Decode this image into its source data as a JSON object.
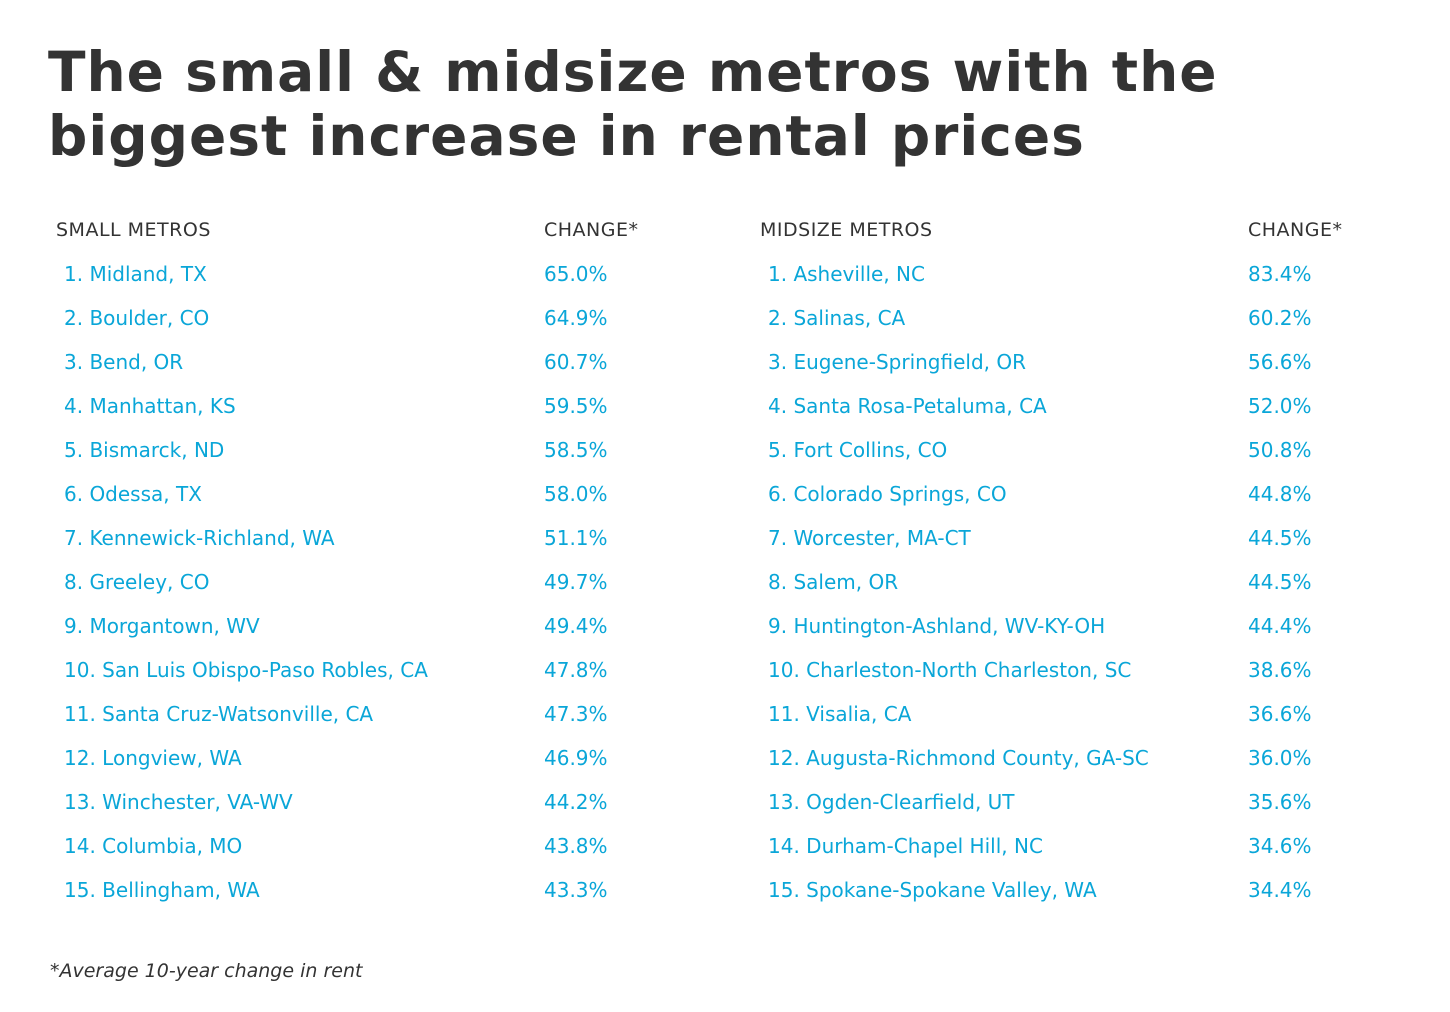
{
  "title": "The small & midsize metros with the biggest increase in rental prices",
  "footnote": "*Average 10-year change in rent",
  "chart_data": {
    "type": "table",
    "tables": [
      {
        "headers": [
          "SMALL METROS",
          "CHANGE*"
        ],
        "rows": [
          {
            "metro": "1. Midland, TX",
            "change": "65.0%"
          },
          {
            "metro": "2. Boulder, CO",
            "change": "64.9%"
          },
          {
            "metro": "3. Bend, OR",
            "change": "60.7%"
          },
          {
            "metro": "4. Manhattan, KS",
            "change": "59.5%"
          },
          {
            "metro": "5. Bismarck, ND",
            "change": "58.5%"
          },
          {
            "metro": "6. Odessa, TX",
            "change": "58.0%"
          },
          {
            "metro": "7. Kennewick-Richland, WA",
            "change": "51.1%"
          },
          {
            "metro": "8. Greeley, CO",
            "change": "49.7%"
          },
          {
            "metro": "9. Morgantown, WV",
            "change": "49.4%"
          },
          {
            "metro": "10. San Luis Obispo-Paso Robles, CA",
            "change": "47.8%"
          },
          {
            "metro": "11. Santa Cruz-Watsonville, CA",
            "change": "47.3%"
          },
          {
            "metro": "12. Longview, WA",
            "change": "46.9%"
          },
          {
            "metro": "13. Winchester, VA-WV",
            "change": "44.2%"
          },
          {
            "metro": "14. Columbia, MO",
            "change": "43.8%"
          },
          {
            "metro": "15. Bellingham, WA",
            "change": "43.3%"
          }
        ]
      },
      {
        "headers": [
          "MIDSIZE METROS",
          "CHANGE*"
        ],
        "rows": [
          {
            "metro": "1. Asheville, NC",
            "change": "83.4%"
          },
          {
            "metro": "2. Salinas, CA",
            "change": "60.2%"
          },
          {
            "metro": "3. Eugene-Springfield, OR",
            "change": "56.6%"
          },
          {
            "metro": "4. Santa Rosa-Petaluma, CA",
            "change": "52.0%"
          },
          {
            "metro": "5. Fort Collins, CO",
            "change": "50.8%"
          },
          {
            "metro": "6. Colorado Springs, CO",
            "change": "44.8%"
          },
          {
            "metro": "7. Worcester, MA-CT",
            "change": "44.5%"
          },
          {
            "metro": "8. Salem, OR",
            "change": "44.5%"
          },
          {
            "metro": "9. Huntington-Ashland, WV-KY-OH",
            "change": "44.4%"
          },
          {
            "metro": "10. Charleston-North Charleston, SC",
            "change": "38.6%"
          },
          {
            "metro": "11. Visalia, CA",
            "change": "36.6%"
          },
          {
            "metro": "12. Augusta-Richmond County, GA-SC",
            "change": "36.0%"
          },
          {
            "metro": "13. Ogden-Clearfield, UT",
            "change": "35.6%"
          },
          {
            "metro": "14. Durham-Chapel Hill, NC",
            "change": "34.6%"
          },
          {
            "metro": "15. Spokane-Spokane Valley, WA",
            "change": "34.4%"
          }
        ]
      }
    ]
  },
  "colors": {
    "title": "#333333",
    "header": "#333333",
    "rows": "#0aa6d8"
  }
}
